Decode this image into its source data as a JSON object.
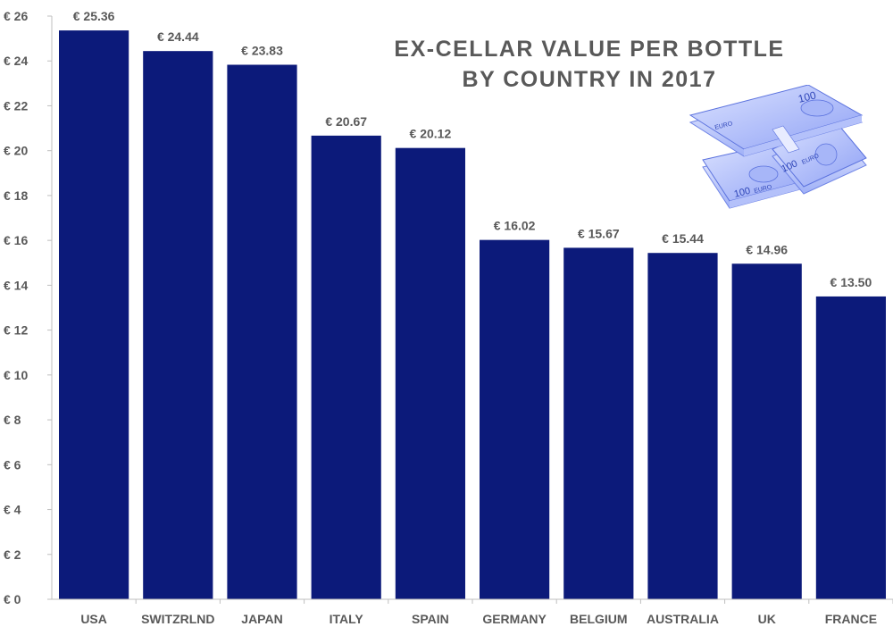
{
  "title_line1": "EX-CELLAR VALUE PER BOTTLE",
  "title_line2": "BY COUNTRY IN 2017",
  "colors": {
    "bar": "#0c1a7a",
    "text": "#595959",
    "axis": "#bfbfbf",
    "money_light": "#c9d3ff",
    "money_mid": "#7e93f2",
    "money_dark": "#4a62d9"
  },
  "illustration": {
    "name": "euro-banknotes-stack-icon",
    "note_texts": [
      "100",
      "EURO",
      "100",
      "EURO",
      "100",
      "EURO"
    ]
  },
  "chart_data": {
    "type": "bar",
    "title": "EX-CELLAR VALUE PER BOTTLE BY COUNTRY IN 2017",
    "xlabel": "",
    "ylabel": "",
    "categories": [
      "USA",
      "SWITZRLND",
      "JAPAN",
      "ITALY",
      "SPAIN",
      "GERMANY",
      "BELGIUM",
      "AUSTRALIA",
      "UK",
      "FRANCE"
    ],
    "values": [
      25.36,
      24.44,
      23.83,
      20.67,
      20.12,
      16.02,
      15.67,
      15.44,
      14.96,
      13.5
    ],
    "data_labels": [
      "€ 25.36",
      "€ 24.44",
      "€ 23.83",
      "€ 20.67",
      "€ 20.12",
      "€ 16.02",
      "€ 15.67",
      "€ 15.44",
      "€ 14.96",
      "€ 13.50"
    ],
    "ylim": [
      0,
      26
    ],
    "yticks": [
      0,
      2,
      4,
      6,
      8,
      10,
      12,
      14,
      16,
      18,
      20,
      22,
      24,
      26
    ],
    "ytick_labels": [
      "€ 0",
      "€ 2",
      "€ 4",
      "€ 6",
      "€ 8",
      "€ 10",
      "€ 12",
      "€ 14",
      "€ 16",
      "€ 18",
      "€ 20",
      "€ 22",
      "€ 24",
      "€ 26"
    ],
    "grid": false,
    "legend": "none"
  }
}
